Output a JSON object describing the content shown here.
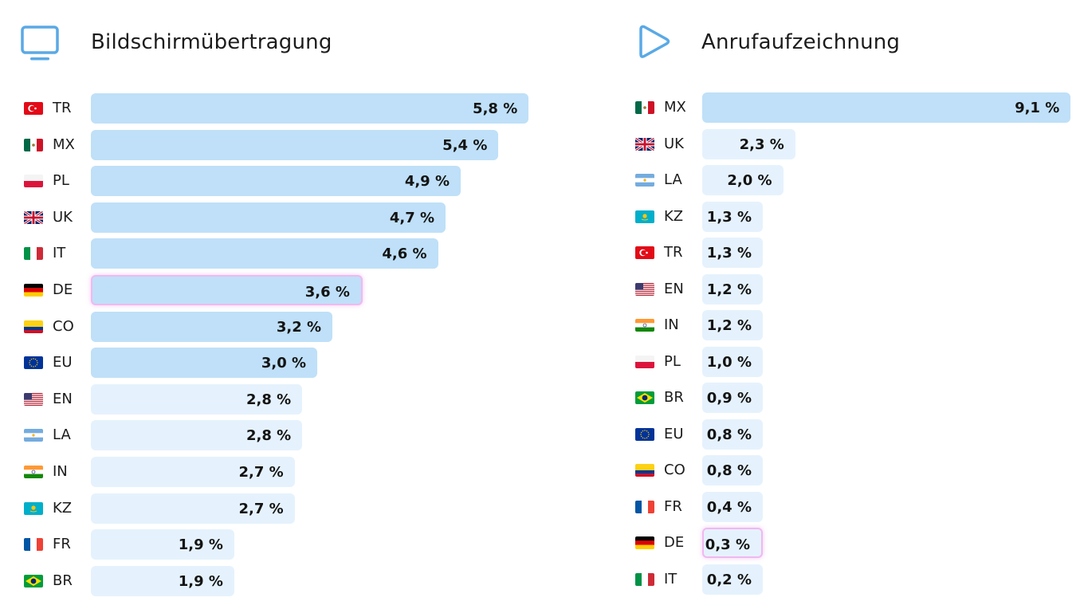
{
  "panels": [
    {
      "title": "Bildschirmübertragung",
      "icon": "monitor-icon",
      "rows": [
        {
          "code": "TR",
          "flag": "turkey",
          "value": 5.8,
          "label": "5,8 %",
          "tone": "strong",
          "highlight": false
        },
        {
          "code": "MX",
          "flag": "mexico",
          "value": 5.4,
          "label": "5,4 %",
          "tone": "strong",
          "highlight": false
        },
        {
          "code": "PL",
          "flag": "poland",
          "value": 4.9,
          "label": "4,9 %",
          "tone": "strong",
          "highlight": false
        },
        {
          "code": "UK",
          "flag": "uk",
          "value": 4.7,
          "label": "4,7 %",
          "tone": "strong",
          "highlight": false
        },
        {
          "code": "IT",
          "flag": "italy",
          "value": 4.6,
          "label": "4,6 %",
          "tone": "strong",
          "highlight": false
        },
        {
          "code": "DE",
          "flag": "germany",
          "value": 3.6,
          "label": "3,6 %",
          "tone": "strong",
          "highlight": true
        },
        {
          "code": "CO",
          "flag": "colombia",
          "value": 3.2,
          "label": "3,2 %",
          "tone": "strong",
          "highlight": false
        },
        {
          "code": "EU",
          "flag": "eu",
          "value": 3.0,
          "label": "3,0 %",
          "tone": "strong",
          "highlight": false
        },
        {
          "code": "EN",
          "flag": "usa",
          "value": 2.8,
          "label": "2,8 %",
          "tone": "light",
          "highlight": false
        },
        {
          "code": "LA",
          "flag": "argentina",
          "value": 2.8,
          "label": "2,8 %",
          "tone": "light",
          "highlight": false
        },
        {
          "code": "IN",
          "flag": "india",
          "value": 2.7,
          "label": "2,7 %",
          "tone": "light",
          "highlight": false
        },
        {
          "code": "KZ",
          "flag": "kazakhstan",
          "value": 2.7,
          "label": "2,7 %",
          "tone": "light",
          "highlight": false
        },
        {
          "code": "FR",
          "flag": "france",
          "value": 1.9,
          "label": "1,9 %",
          "tone": "light",
          "highlight": false
        },
        {
          "code": "BR",
          "flag": "brazil",
          "value": 1.9,
          "label": "1,9 %",
          "tone": "light",
          "highlight": false
        }
      ]
    },
    {
      "title": "Anrufaufzeichnung",
      "icon": "play-icon",
      "rows": [
        {
          "code": "MX",
          "flag": "mexico",
          "value": 9.1,
          "label": "9,1 %",
          "tone": "strong",
          "highlight": false
        },
        {
          "code": "UK",
          "flag": "uk",
          "value": 2.3,
          "label": "2,3 %",
          "tone": "light",
          "highlight": false
        },
        {
          "code": "LA",
          "flag": "argentina",
          "value": 2.0,
          "label": "2,0 %",
          "tone": "light",
          "highlight": false
        },
        {
          "code": "KZ",
          "flag": "kazakhstan",
          "value": 1.3,
          "label": "1,3 %",
          "tone": "light",
          "highlight": false
        },
        {
          "code": "TR",
          "flag": "turkey",
          "value": 1.3,
          "label": "1,3 %",
          "tone": "light",
          "highlight": false
        },
        {
          "code": "EN",
          "flag": "usa",
          "value": 1.2,
          "label": "1,2 %",
          "tone": "light",
          "highlight": false
        },
        {
          "code": "IN",
          "flag": "india",
          "value": 1.2,
          "label": "1,2 %",
          "tone": "light",
          "highlight": false
        },
        {
          "code": "PL",
          "flag": "poland",
          "value": 1.0,
          "label": "1,0 %",
          "tone": "light",
          "highlight": false
        },
        {
          "code": "BR",
          "flag": "brazil",
          "value": 0.9,
          "label": "0,9 %",
          "tone": "light",
          "highlight": false
        },
        {
          "code": "EU",
          "flag": "eu",
          "value": 0.8,
          "label": "0,8 %",
          "tone": "light",
          "highlight": false
        },
        {
          "code": "CO",
          "flag": "colombia",
          "value": 0.8,
          "label": "0,8 %",
          "tone": "light",
          "highlight": false
        },
        {
          "code": "FR",
          "flag": "france",
          "value": 0.4,
          "label": "0,4 %",
          "tone": "light",
          "highlight": false
        },
        {
          "code": "DE",
          "flag": "germany",
          "value": 0.3,
          "label": "0,3 %",
          "tone": "light",
          "highlight": true
        },
        {
          "code": "IT",
          "flag": "italy",
          "value": 0.2,
          "label": "0,2 %",
          "tone": "light",
          "highlight": false
        }
      ]
    }
  ],
  "colors": {
    "accent": "#5aa9e6",
    "bar_strong": "#bfe0f8",
    "bar_light": "#e5f2fd",
    "highlight_border": "#f1b8f0"
  },
  "chart_data": [
    {
      "type": "bar",
      "orientation": "horizontal",
      "title": "Bildschirmübertragung",
      "categories": [
        "TR",
        "MX",
        "PL",
        "UK",
        "IT",
        "DE",
        "CO",
        "EU",
        "EN",
        "LA",
        "IN",
        "KZ",
        "FR",
        "BR"
      ],
      "values": [
        5.8,
        5.4,
        4.9,
        4.7,
        4.6,
        3.6,
        3.2,
        3.0,
        2.8,
        2.8,
        2.7,
        2.7,
        1.9,
        1.9
      ],
      "unit": "%",
      "highlighted": "DE"
    },
    {
      "type": "bar",
      "orientation": "horizontal",
      "title": "Anrufaufzeichnung",
      "categories": [
        "MX",
        "UK",
        "LA",
        "KZ",
        "TR",
        "EN",
        "IN",
        "PL",
        "BR",
        "EU",
        "CO",
        "FR",
        "DE",
        "IT"
      ],
      "values": [
        9.1,
        2.3,
        2.0,
        1.3,
        1.3,
        1.2,
        1.2,
        1.0,
        0.9,
        0.8,
        0.8,
        0.4,
        0.3,
        0.2
      ],
      "unit": "%",
      "highlighted": "DE"
    }
  ]
}
